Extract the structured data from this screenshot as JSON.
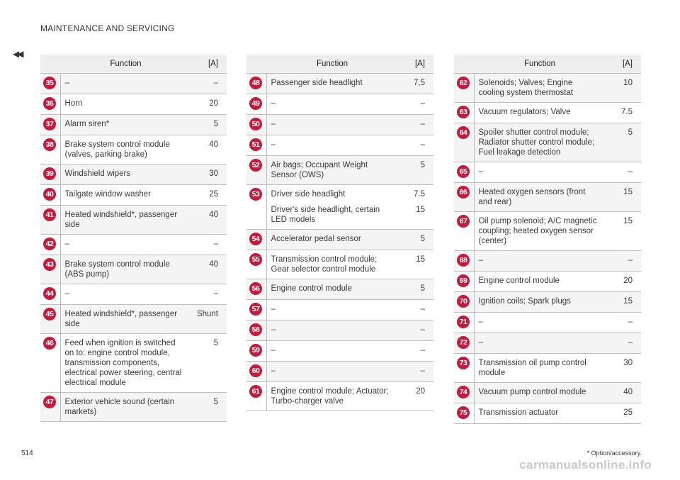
{
  "header": {
    "title": "MAINTENANCE AND SERVICING",
    "back_symbol": "◀◀"
  },
  "columns": {
    "function": "Function",
    "amperage": "[A]"
  },
  "tables": [
    {
      "rows": [
        {
          "num": "35",
          "func": [
            "–"
          ],
          "amp": [
            "–"
          ]
        },
        {
          "num": "36",
          "func": [
            "Horn"
          ],
          "amp": [
            "20"
          ]
        },
        {
          "num": "37",
          "func": [
            "Alarm siren*"
          ],
          "amp": [
            "5"
          ]
        },
        {
          "num": "38",
          "func": [
            "Brake system control module (valves, parking brake)"
          ],
          "amp": [
            "40"
          ]
        },
        {
          "num": "39",
          "func": [
            "Windshield wipers"
          ],
          "amp": [
            "30"
          ]
        },
        {
          "num": "40",
          "func": [
            "Tailgate window washer"
          ],
          "amp": [
            "25"
          ]
        },
        {
          "num": "41",
          "func": [
            "Heated windshield*, passenger side"
          ],
          "amp": [
            "40"
          ]
        },
        {
          "num": "42",
          "func": [
            "–"
          ],
          "amp": [
            "–"
          ]
        },
        {
          "num": "43",
          "func": [
            "Brake system control module (ABS pump)"
          ],
          "amp": [
            "40"
          ]
        },
        {
          "num": "44",
          "func": [
            "–"
          ],
          "amp": [
            "–"
          ]
        },
        {
          "num": "45",
          "func": [
            "Heated windshield*, passenger side"
          ],
          "amp": [
            "Shunt"
          ]
        },
        {
          "num": "46",
          "func": [
            "Feed when ignition is switched on to: engine control module, transmission components, electrical power steering, central electrical module"
          ],
          "amp": [
            "5"
          ]
        },
        {
          "num": "47",
          "func": [
            "Exterior vehicle sound (certain markets)"
          ],
          "amp": [
            "5"
          ]
        }
      ]
    },
    {
      "rows": [
        {
          "num": "48",
          "func": [
            "Passenger side headlight"
          ],
          "amp": [
            "7,5"
          ]
        },
        {
          "num": "49",
          "func": [
            "–"
          ],
          "amp": [
            "–"
          ]
        },
        {
          "num": "50",
          "func": [
            "–"
          ],
          "amp": [
            "–"
          ]
        },
        {
          "num": "51",
          "func": [
            "–"
          ],
          "amp": [
            "–"
          ]
        },
        {
          "num": "52",
          "func": [
            "Air bags; Occupant Weight Sensor (OWS)"
          ],
          "amp": [
            "5"
          ]
        },
        {
          "num": "53",
          "func": [
            "Driver side headlight",
            "Driver's side headlight, certain LED models"
          ],
          "amp": [
            "7.5",
            "15"
          ]
        },
        {
          "num": "54",
          "func": [
            "Accelerator pedal sensor"
          ],
          "amp": [
            "5"
          ]
        },
        {
          "num": "55",
          "func": [
            "Transmission control module; Gear selector control module"
          ],
          "amp": [
            "15"
          ]
        },
        {
          "num": "56",
          "func": [
            "Engine control module"
          ],
          "amp": [
            "5"
          ]
        },
        {
          "num": "57",
          "func": [
            "–"
          ],
          "amp": [
            "–"
          ]
        },
        {
          "num": "58",
          "func": [
            "–"
          ],
          "amp": [
            "–"
          ]
        },
        {
          "num": "59",
          "func": [
            "–"
          ],
          "amp": [
            "–"
          ]
        },
        {
          "num": "60",
          "func": [
            "–"
          ],
          "amp": [
            "–"
          ]
        },
        {
          "num": "61",
          "func": [
            "Engine control module; Actuator; Turbo-charger valve"
          ],
          "amp": [
            "20"
          ]
        }
      ]
    },
    {
      "rows": [
        {
          "num": "62",
          "func": [
            "Solenoids; Valves; Engine cooling system thermostat"
          ],
          "amp": [
            "10"
          ]
        },
        {
          "num": "63",
          "func": [
            "Vacuum regulators; Valve"
          ],
          "amp": [
            "7.5"
          ]
        },
        {
          "num": "64",
          "func": [
            "Spoiler shutter control module; Radiator shutter control module; Fuel leakage detection"
          ],
          "amp": [
            "5"
          ]
        },
        {
          "num": "65",
          "func": [
            "–"
          ],
          "amp": [
            "–"
          ]
        },
        {
          "num": "66",
          "func": [
            "Heated oxygen sensors (front and rear)"
          ],
          "amp": [
            "15"
          ]
        },
        {
          "num": "67",
          "func": [
            "Oil pump solenoid; A/C magnetic coupling; heated oxygen sensor (center)"
          ],
          "amp": [
            "15"
          ]
        },
        {
          "num": "68",
          "func": [
            "–"
          ],
          "amp": [
            "–"
          ]
        },
        {
          "num": "69",
          "func": [
            "Engine control module"
          ],
          "amp": [
            "20"
          ]
        },
        {
          "num": "70",
          "func": [
            "Ignition coils; Spark plugs"
          ],
          "amp": [
            "15"
          ]
        },
        {
          "num": "71",
          "func": [
            "–"
          ],
          "amp": [
            "–"
          ]
        },
        {
          "num": "72",
          "func": [
            "–"
          ],
          "amp": [
            "–"
          ]
        },
        {
          "num": "73",
          "func": [
            "Transmission oil pump control module"
          ],
          "amp": [
            "30"
          ]
        },
        {
          "num": "74",
          "func": [
            "Vacuum pump control module"
          ],
          "amp": [
            "40"
          ]
        },
        {
          "num": "75",
          "func": [
            "Transmission actuator"
          ],
          "amp": [
            "25"
          ]
        }
      ]
    }
  ],
  "footer": {
    "page_number": "514",
    "footnote": "* Option/accessory.",
    "watermark": "carmanualsonline.info"
  },
  "colors": {
    "badge": "#c41a3c",
    "header_bg": "#eeeeee",
    "row_shade": "#f4f4f4"
  }
}
